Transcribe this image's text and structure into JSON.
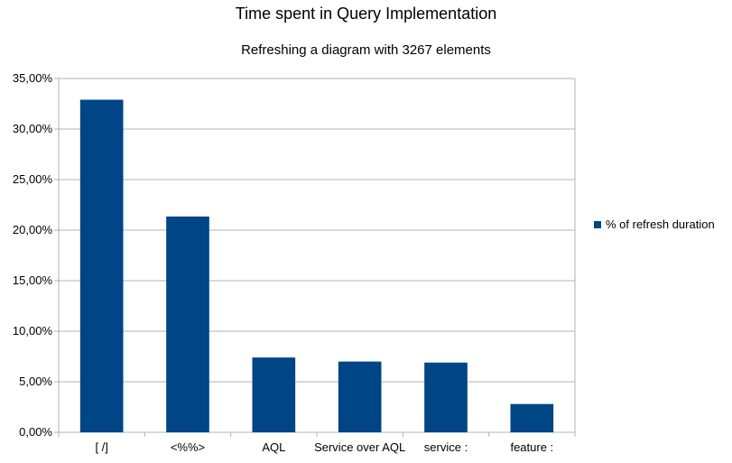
{
  "chart_data": {
    "type": "bar",
    "title": "Time spent in Query Implementation",
    "subtitle": "Refreshing a diagram with 3267 elements",
    "categories": [
      "[ /]",
      "<%%>",
      "AQL",
      "Service over AQL",
      "service :",
      "feature :"
    ],
    "series": [
      {
        "name": "% of refresh duration",
        "values": [
          32.9,
          21.35,
          7.4,
          7.0,
          6.9,
          2.8
        ],
        "color": "#004586"
      }
    ],
    "ylim": [
      0,
      35
    ],
    "yticks": [
      "0,00%",
      "5,00%",
      "10,00%",
      "15,00%",
      "20,00%",
      "25,00%",
      "30,00%",
      "35,00%"
    ],
    "grid": true,
    "legend_position": "right"
  }
}
